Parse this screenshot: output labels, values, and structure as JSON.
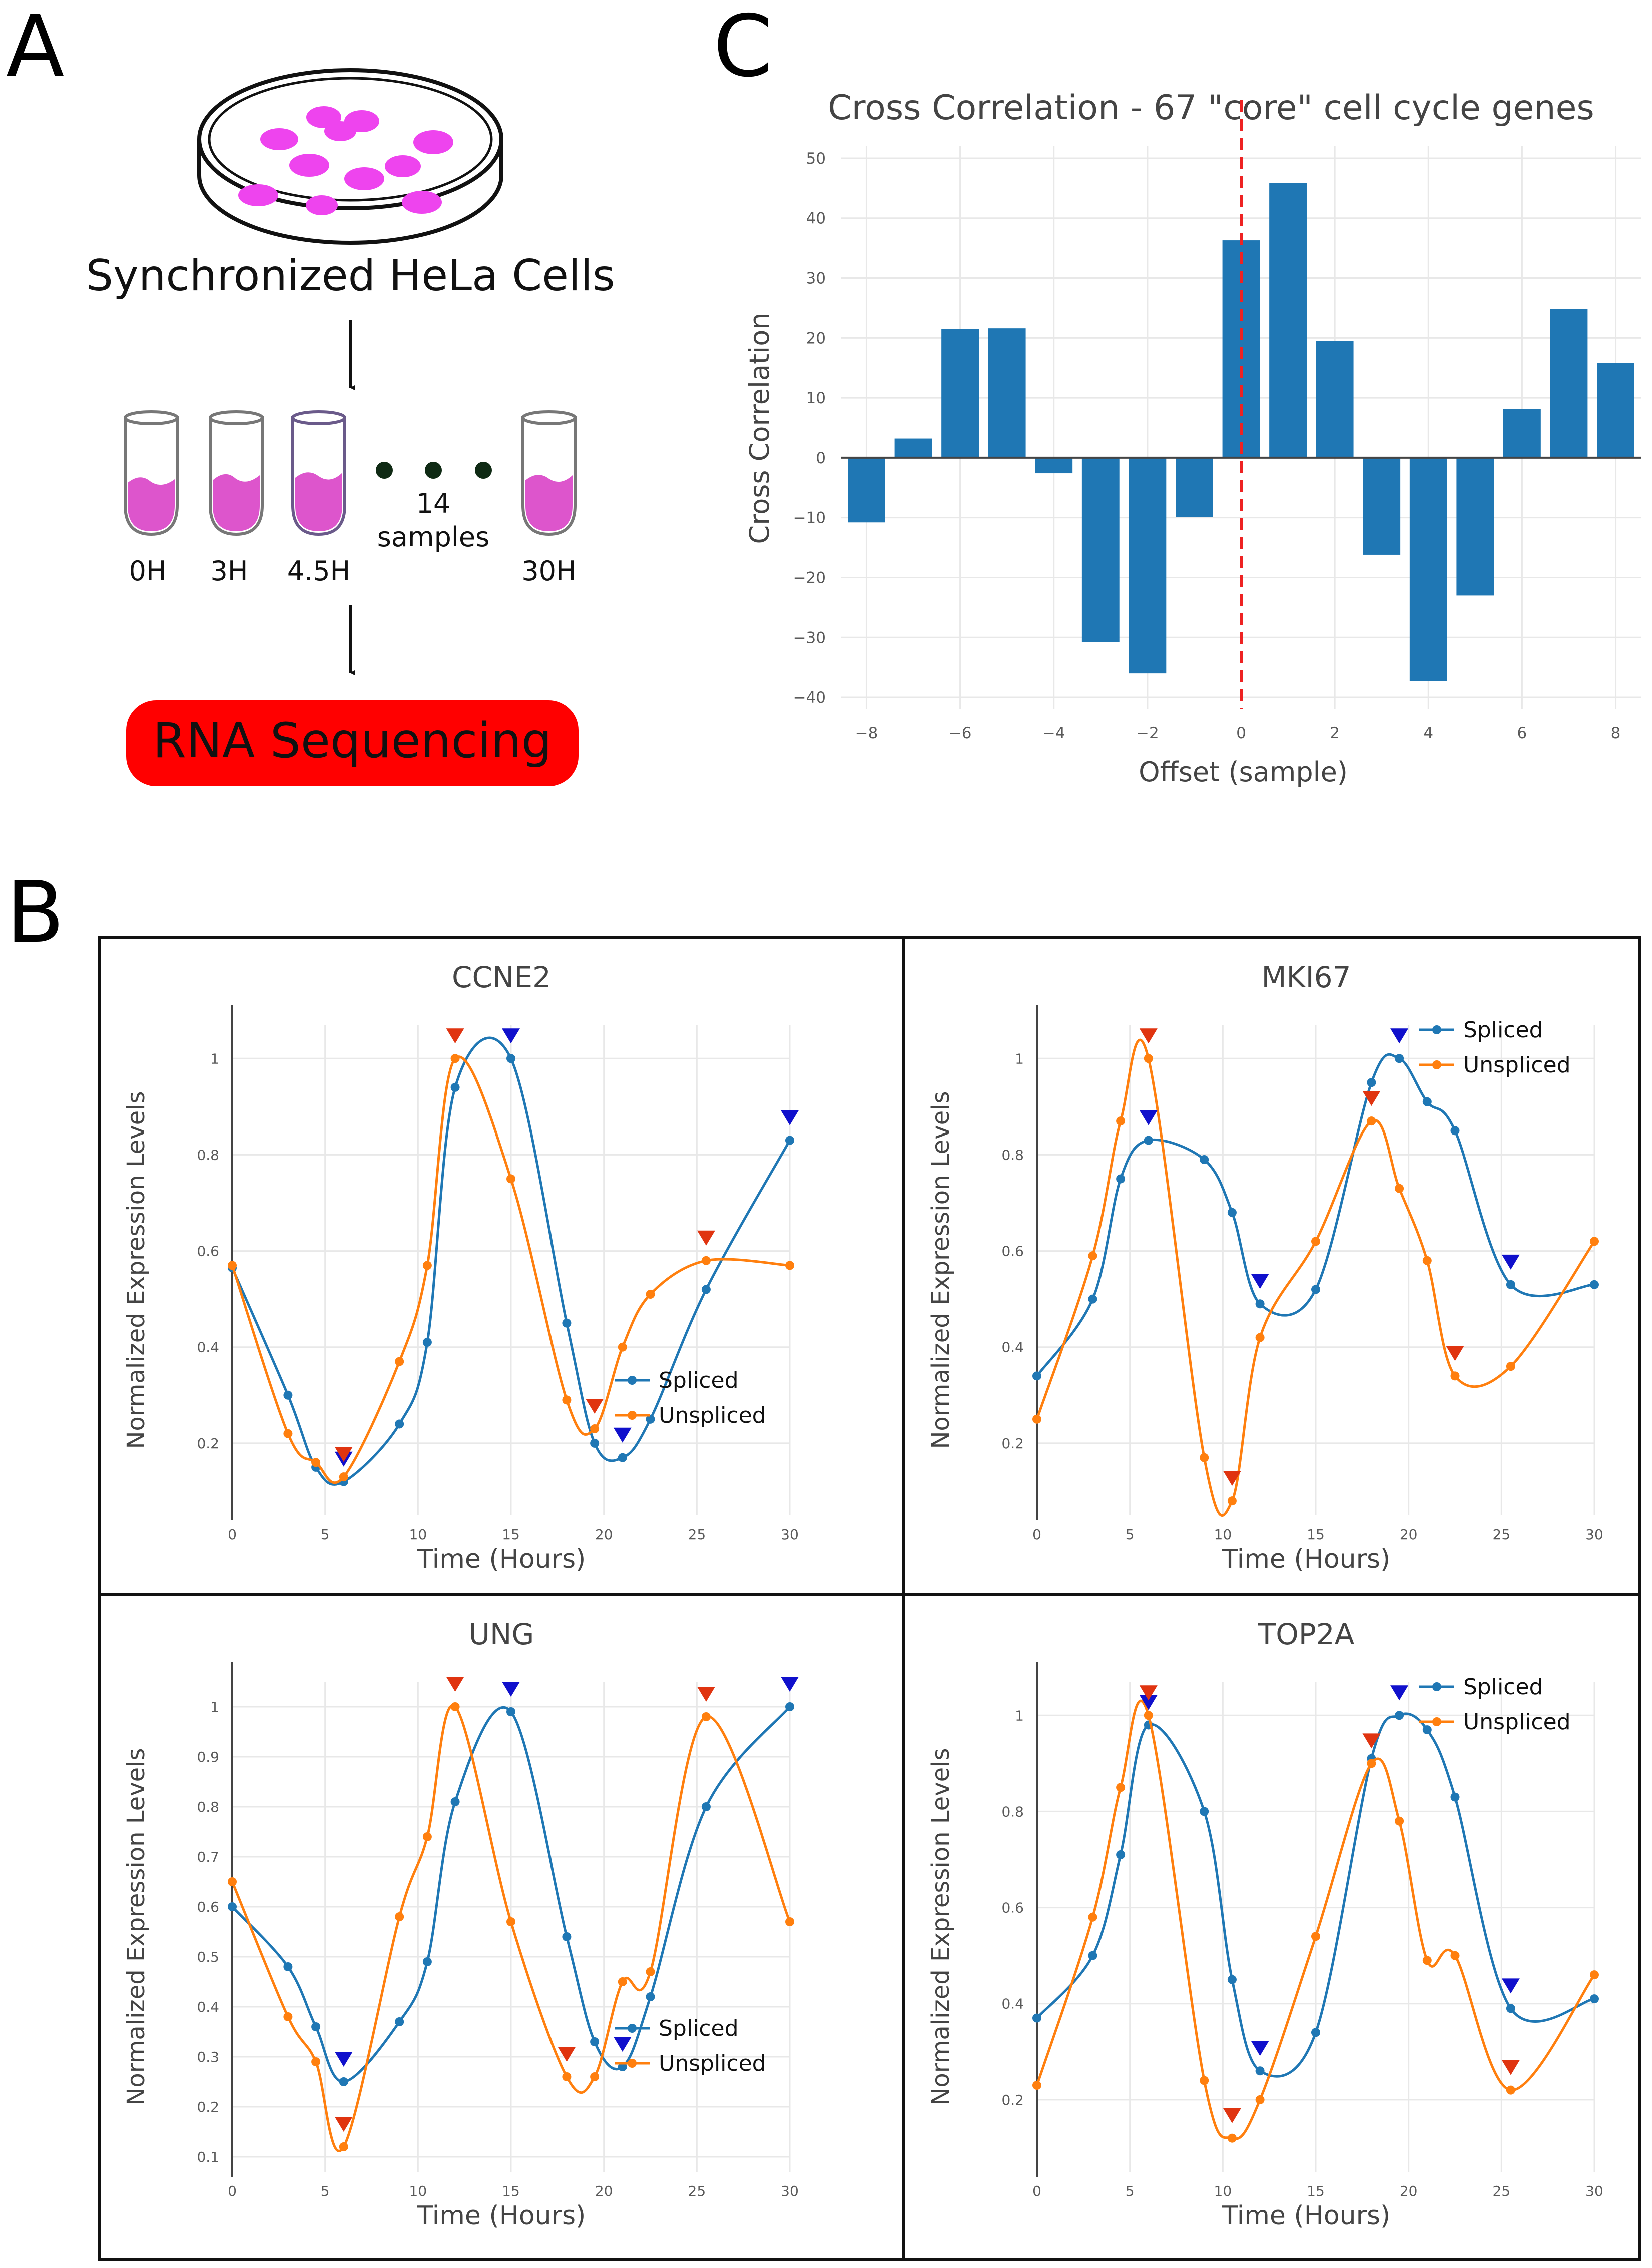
{
  "panels": {
    "a": {
      "letter": "A",
      "cells_label": "Synchronized HeLa Cells",
      "tube_labels": [
        "0H",
        "3H",
        "4.5H",
        "30H"
      ],
      "samples_count": "14",
      "samples_word": "samples",
      "rna_label": "RNA Sequencing",
      "colors": {
        "cells": "#ee44ee",
        "medium": "#dd55cc",
        "rna": "#ff0000"
      }
    },
    "b": {
      "letter": "B"
    },
    "c": {
      "letter": "C"
    }
  },
  "chart_data": [
    {
      "id": "cross",
      "type": "bar",
      "title": "Cross Correlation - 67 \"core\" cell cycle genes",
      "xlabel": "Offset (sample)",
      "ylabel": "Cross Correlation",
      "x": [
        -8,
        -7,
        -6,
        -5,
        -4,
        -3,
        -2,
        -1,
        0,
        1,
        2,
        3,
        4,
        5,
        6,
        7,
        8
      ],
      "values": [
        -10.8,
        3.2,
        21.5,
        21.6,
        -2.6,
        -30.8,
        -36,
        -9.9,
        36.3,
        45.9,
        19.5,
        -16.2,
        -37.3,
        -23,
        8.1,
        24.8,
        15.8
      ],
      "xlim": [
        -8.55,
        8.55
      ],
      "ylim": [
        -42,
        52
      ],
      "xticks": [
        -8,
        -6,
        -4,
        -2,
        0,
        2,
        4,
        6,
        8
      ],
      "yticks": [
        -40,
        -30,
        -20,
        -10,
        0,
        10,
        20,
        30,
        40,
        50
      ],
      "xtick_labels": [
        "−8",
        "−6",
        "−4",
        "−2",
        "0",
        "2",
        "4",
        "6",
        "8"
      ],
      "ytick_labels": [
        "−40",
        "−30",
        "−20",
        "−10",
        "0",
        "10",
        "20",
        "30",
        "40",
        "50"
      ],
      "reference_line": {
        "x": 0,
        "style": "dashed",
        "color": "#ee2222"
      },
      "bar_color": "#1f77b4"
    },
    {
      "id": "CCNE2",
      "type": "line",
      "title": "CCNE2",
      "xlabel": "Time (Hours)",
      "ylabel": "Normalized Expression Levels",
      "legend_position": "right-middle",
      "xlim": [
        0,
        30
      ],
      "ylim": [
        0.05,
        1.07
      ],
      "xticks": [
        0,
        5,
        10,
        15,
        20,
        25,
        30
      ],
      "yticks": [
        0.2,
        0.4,
        0.6,
        0.8,
        1
      ],
      "xtick_labels": [
        "0",
        "5",
        "10",
        "15",
        "20",
        "25",
        "30"
      ],
      "ytick_labels": [
        "0.2",
        "0.4",
        "0.6",
        "0.8",
        "1"
      ],
      "series": [
        {
          "name": "Spliced",
          "color": "#1f77b4",
          "x": [
            0,
            3,
            4.5,
            6,
            9,
            10.5,
            12,
            15,
            18,
            19.5,
            21,
            22.5,
            25.5,
            30
          ],
          "values": [
            0.565,
            0.3,
            0.15,
            0.12,
            0.24,
            0.41,
            0.94,
            1.0,
            0.45,
            0.2,
            0.17,
            0.25,
            0.52,
            0.83
          ]
        },
        {
          "name": "Unspliced",
          "color": "#ff7f0e",
          "x": [
            0,
            3,
            4.5,
            6,
            9,
            10.5,
            12,
            15,
            18,
            19.5,
            21,
            22.5,
            25.5,
            30
          ],
          "values": [
            0.57,
            0.22,
            0.16,
            0.13,
            0.37,
            0.57,
            1.0,
            0.75,
            0.29,
            0.23,
            0.4,
            0.51,
            0.58,
            0.57
          ]
        }
      ],
      "markers": [
        {
          "series": "Spliced",
          "x": [
            6,
            15,
            21,
            30
          ],
          "values": [
            0.12,
            1.0,
            0.17,
            0.83
          ]
        },
        {
          "series": "Unspliced",
          "x": [
            6,
            12,
            19.5,
            25.5
          ],
          "values": [
            0.13,
            1.0,
            0.23,
            0.58
          ]
        }
      ]
    },
    {
      "id": "MKI67",
      "type": "line",
      "title": "MKI67",
      "xlabel": "Time (Hours)",
      "ylabel": "Normalized Expression Levels",
      "legend_position": "top-right",
      "xlim": [
        0,
        30
      ],
      "ylim": [
        0.05,
        1.07
      ],
      "xticks": [
        0,
        5,
        10,
        15,
        20,
        25,
        30
      ],
      "yticks": [
        0.2,
        0.4,
        0.6,
        0.8,
        1
      ],
      "xtick_labels": [
        "0",
        "5",
        "10",
        "15",
        "20",
        "25",
        "30"
      ],
      "ytick_labels": [
        "0.2",
        "0.4",
        "0.6",
        "0.8",
        "1"
      ],
      "series": [
        {
          "name": "Spliced",
          "color": "#1f77b4",
          "x": [
            0,
            3,
            4.5,
            6,
            9,
            10.5,
            12,
            15,
            18,
            19.5,
            21,
            22.5,
            25.5,
            30
          ],
          "values": [
            0.34,
            0.5,
            0.75,
            0.83,
            0.79,
            0.68,
            0.49,
            0.52,
            0.95,
            1.0,
            0.91,
            0.85,
            0.53,
            0.53
          ]
        },
        {
          "name": "Unspliced",
          "color": "#ff7f0e",
          "x": [
            0,
            3,
            4.5,
            6,
            9,
            10.5,
            12,
            15,
            18,
            19.5,
            21,
            22.5,
            25.5,
            30
          ],
          "values": [
            0.25,
            0.59,
            0.87,
            1.0,
            0.17,
            0.08,
            0.42,
            0.62,
            0.87,
            0.73,
            0.58,
            0.34,
            0.36,
            0.62
          ]
        }
      ],
      "markers": [
        {
          "series": "Spliced",
          "x": [
            6,
            12,
            19.5,
            25.5
          ],
          "values": [
            0.83,
            0.49,
            1.0,
            0.53
          ]
        },
        {
          "series": "Unspliced",
          "x": [
            6,
            10.5,
            18,
            22.5
          ],
          "values": [
            1.0,
            0.08,
            0.87,
            0.34
          ]
        }
      ]
    },
    {
      "id": "UNG",
      "type": "line",
      "title": "UNG",
      "xlabel": "Time (Hours)",
      "ylabel": "Normalized Expression Levels",
      "legend_position": "bottom-right",
      "xlim": [
        0,
        30
      ],
      "ylim": [
        0.07,
        1.05
      ],
      "xticks": [
        0,
        5,
        10,
        15,
        20,
        25,
        30
      ],
      "yticks": [
        0.1,
        0.2,
        0.3,
        0.4,
        0.5,
        0.6,
        0.7,
        0.8,
        0.9,
        1
      ],
      "xtick_labels": [
        "0",
        "5",
        "10",
        "15",
        "20",
        "25",
        "30"
      ],
      "ytick_labels": [
        "0.1",
        "0.2",
        "0.3",
        "0.4",
        "0.5",
        "0.6",
        "0.7",
        "0.8",
        "0.9",
        "1"
      ],
      "series": [
        {
          "name": "Spliced",
          "color": "#1f77b4",
          "x": [
            0,
            3,
            4.5,
            6,
            9,
            10.5,
            12,
            15,
            18,
            19.5,
            21,
            22.5,
            25.5,
            30
          ],
          "values": [
            0.6,
            0.48,
            0.36,
            0.25,
            0.37,
            0.49,
            0.81,
            0.99,
            0.54,
            0.33,
            0.28,
            0.42,
            0.8,
            1.0
          ]
        },
        {
          "name": "Unspliced",
          "color": "#ff7f0e",
          "x": [
            0,
            3,
            4.5,
            6,
            9,
            10.5,
            12,
            15,
            18,
            19.5,
            21,
            22.5,
            25.5,
            30
          ],
          "values": [
            0.65,
            0.38,
            0.29,
            0.12,
            0.58,
            0.74,
            1.0,
            0.57,
            0.26,
            0.26,
            0.45,
            0.47,
            0.98,
            0.57
          ]
        }
      ],
      "markers": [
        {
          "series": "Spliced",
          "x": [
            6,
            15,
            21,
            30
          ],
          "values": [
            0.25,
            0.99,
            0.28,
            1.0
          ]
        },
        {
          "series": "Unspliced",
          "x": [
            6,
            12,
            18,
            25.5
          ],
          "values": [
            0.12,
            1.0,
            0.26,
            0.98
          ]
        }
      ]
    },
    {
      "id": "TOP2A",
      "type": "line",
      "title": "TOP2A",
      "xlabel": "Time (Hours)",
      "ylabel": "Normalized Expression Levels",
      "legend_position": "top-right",
      "xlim": [
        0,
        30
      ],
      "ylim": [
        0.05,
        1.07
      ],
      "xticks": [
        0,
        5,
        10,
        15,
        20,
        25,
        30
      ],
      "yticks": [
        0.2,
        0.4,
        0.6,
        0.8,
        1
      ],
      "xtick_labels": [
        "0",
        "5",
        "10",
        "15",
        "20",
        "25",
        "30"
      ],
      "ytick_labels": [
        "0.2",
        "0.4",
        "0.6",
        "0.8",
        "1"
      ],
      "series": [
        {
          "name": "Spliced",
          "color": "#1f77b4",
          "x": [
            0,
            3,
            4.5,
            6,
            9,
            10.5,
            12,
            15,
            18,
            19.5,
            21,
            22.5,
            25.5,
            30
          ],
          "values": [
            0.37,
            0.5,
            0.71,
            0.98,
            0.8,
            0.45,
            0.26,
            0.34,
            0.91,
            1.0,
            0.97,
            0.83,
            0.39,
            0.41
          ]
        },
        {
          "name": "Unspliced",
          "color": "#ff7f0e",
          "x": [
            0,
            3,
            4.5,
            6,
            9,
            10.5,
            12,
            15,
            18,
            19.5,
            21,
            22.5,
            25.5,
            30
          ],
          "values": [
            0.23,
            0.58,
            0.85,
            1.0,
            0.24,
            0.12,
            0.2,
            0.54,
            0.9,
            0.78,
            0.49,
            0.5,
            0.22,
            0.46
          ]
        }
      ],
      "markers": [
        {
          "series": "Spliced",
          "x": [
            6,
            12,
            19.5,
            25.5
          ],
          "values": [
            0.98,
            0.26,
            1.0,
            0.39
          ]
        },
        {
          "series": "Unspliced",
          "x": [
            6,
            10.5,
            18,
            25.5
          ],
          "values": [
            1.0,
            0.12,
            0.9,
            0.22
          ]
        }
      ]
    }
  ]
}
